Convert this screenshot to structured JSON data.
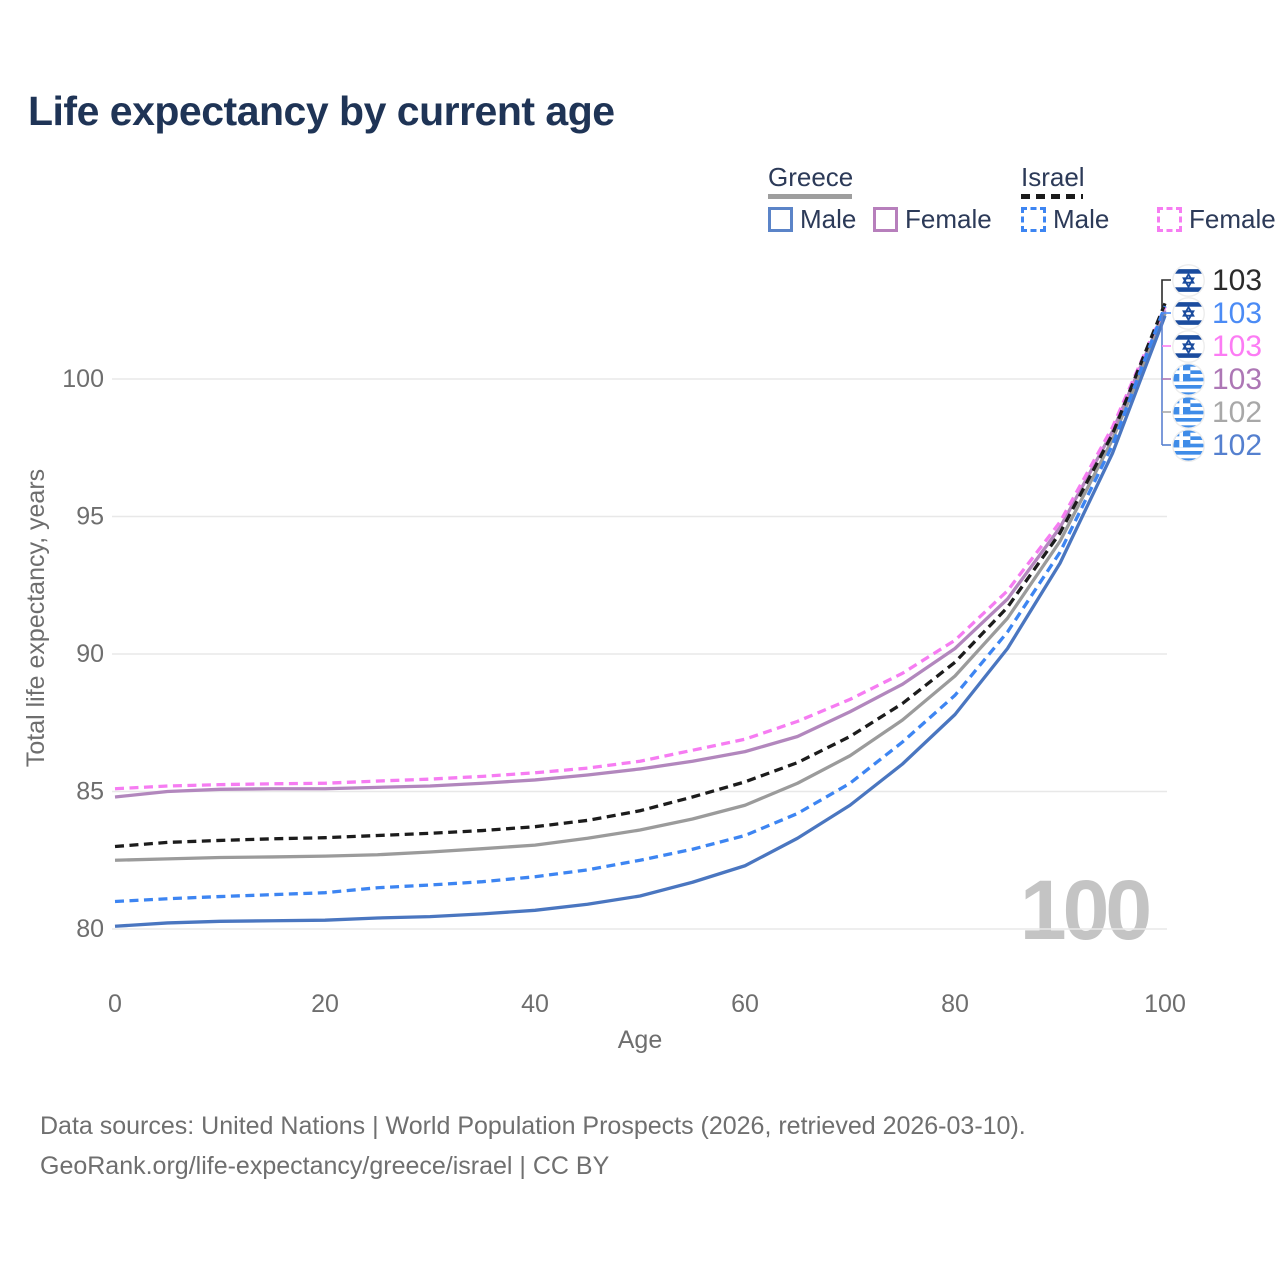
{
  "title": "Life expectancy by current age",
  "watermark": "100",
  "legend": {
    "groups": [
      {
        "label": "Greece",
        "line_style": "solid",
        "underline_color": "#9e9e9e",
        "items": [
          {
            "label": "Male",
            "color": "#5b84c8",
            "dash": false
          },
          {
            "label": "Female",
            "color": "#b77fbc",
            "dash": false
          }
        ]
      },
      {
        "label": "Israel",
        "line_style": "dashed",
        "underline_color": "#1a1a1a",
        "items": [
          {
            "label": "Male",
            "color": "#3d85f2",
            "dash": true
          },
          {
            "label": "Female",
            "color": "#f67cf2",
            "dash": true
          }
        ]
      }
    ]
  },
  "axes": {
    "x_label": "Age",
    "y_label": "Total life expectancy, years",
    "x_ticks": [
      "0",
      "20",
      "40",
      "60",
      "80",
      "100"
    ],
    "y_ticks": [
      "80",
      "85",
      "90",
      "95",
      "100"
    ]
  },
  "chart_data": {
    "type": "line",
    "title": "Life expectancy by current age",
    "xlabel": "Age",
    "ylabel": "Total life expectancy, years",
    "xlim": [
      0,
      100
    ],
    "ylim": [
      78,
      103.5
    ],
    "xticks": [
      0,
      20,
      40,
      60,
      80,
      100
    ],
    "yticks": [
      80,
      85,
      90,
      95,
      100
    ],
    "grid": true,
    "legend_position": "top-right",
    "x": [
      0,
      5,
      10,
      15,
      20,
      25,
      30,
      35,
      40,
      45,
      50,
      55,
      60,
      65,
      70,
      75,
      80,
      85,
      90,
      95,
      100
    ],
    "series": [
      {
        "name": "Greece Female",
        "country": "Greece",
        "sex": "Female",
        "color": "#b287bd",
        "dash": "solid",
        "values": [
          84.8,
          85.0,
          85.08,
          85.1,
          85.1,
          85.15,
          85.2,
          85.3,
          85.42,
          85.6,
          85.82,
          86.1,
          86.45,
          87.0,
          87.9,
          88.9,
          90.2,
          92.0,
          94.6,
          98.1,
          102.5
        ]
      },
      {
        "name": "Greece",
        "country": "Greece",
        "sex": "Both",
        "color": "#9b9b9b",
        "dash": "solid",
        "values": [
          82.5,
          82.55,
          82.6,
          82.62,
          82.65,
          82.7,
          82.8,
          82.92,
          83.05,
          83.3,
          83.6,
          84.0,
          84.5,
          85.3,
          86.3,
          87.6,
          89.2,
          91.3,
          94.1,
          97.8,
          102.38
        ]
      },
      {
        "name": "Greece Male",
        "country": "Greece",
        "sex": "Male",
        "color": "#4a76c0",
        "dash": "solid",
        "values": [
          80.1,
          80.22,
          80.28,
          80.3,
          80.32,
          80.4,
          80.45,
          80.55,
          80.68,
          80.9,
          81.2,
          81.7,
          82.3,
          83.3,
          84.5,
          86.0,
          87.8,
          90.2,
          93.3,
          97.3,
          102.3
        ]
      },
      {
        "name": "Israel Female",
        "country": "Israel",
        "sex": "Female",
        "color": "#f67cf2",
        "dash": "dashed",
        "values": [
          85.1,
          85.2,
          85.25,
          85.28,
          85.3,
          85.38,
          85.45,
          85.55,
          85.68,
          85.85,
          86.1,
          86.5,
          86.9,
          87.55,
          88.35,
          89.3,
          90.5,
          92.3,
          94.8,
          98.25,
          102.62
        ]
      },
      {
        "name": "Israel",
        "country": "Israel",
        "sex": "Both",
        "color": "#1c1c1c",
        "dash": "dashed",
        "values": [
          83.0,
          83.15,
          83.22,
          83.28,
          83.32,
          83.4,
          83.48,
          83.58,
          83.72,
          83.95,
          84.3,
          84.8,
          85.35,
          86.05,
          87.0,
          88.2,
          89.7,
          91.7,
          94.4,
          98.0,
          102.75
        ]
      },
      {
        "name": "Israel Male",
        "country": "Israel",
        "sex": "Male",
        "color": "#3d85f2",
        "dash": "dashed",
        "values": [
          81.0,
          81.1,
          81.18,
          81.25,
          81.32,
          81.5,
          81.6,
          81.72,
          81.9,
          82.15,
          82.5,
          82.9,
          83.4,
          84.2,
          85.3,
          86.8,
          88.5,
          90.8,
          93.7,
          97.6,
          102.65
        ]
      }
    ]
  },
  "end_labels": [
    {
      "flag": "israel",
      "series": "Israel",
      "value": "103",
      "color": "#2b2b2b"
    },
    {
      "flag": "israel",
      "series": "Israel Male",
      "value": "103",
      "color": "#4b8bf5"
    },
    {
      "flag": "israel",
      "series": "Israel Female",
      "value": "103",
      "color": "#fc7cf4"
    },
    {
      "flag": "greece",
      "series": "Greece Female",
      "value": "103",
      "color": "#ad77b5"
    },
    {
      "flag": "greece",
      "series": "Greece",
      "value": "102",
      "color": "#a8a8a8"
    },
    {
      "flag": "greece",
      "series": "Greece Male",
      "value": "102",
      "color": "#5580cf"
    }
  ],
  "footer": {
    "line1": "Data sources: United Nations | World Population Prospects (2026, retrieved 2026-03-10).",
    "line2": "GeoRank.org/life-expectancy/greece/israel | CC BY"
  }
}
